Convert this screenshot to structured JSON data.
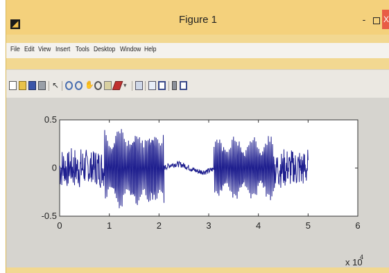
{
  "window": {
    "title": "Figure 1",
    "app_icon": "matlab-icon",
    "controls": {
      "minimize": "-",
      "close": "X"
    }
  },
  "menu": {
    "items": [
      "File",
      "Edit",
      "View",
      "Insert",
      "Tools",
      "Desktop",
      "Window",
      "Help"
    ]
  },
  "toolbar": {
    "icons": [
      "new-figure-icon",
      "open-file-icon",
      "save-icon",
      "print-icon",
      "edit-plot-icon",
      "zoom-in-icon",
      "zoom-out-icon",
      "pan-icon",
      "rotate-3d-icon",
      "data-cursor-icon",
      "brush-icon",
      "link-plot-icon",
      "insert-colorbar-icon",
      "insert-legend-icon",
      "hide-plot-tools-icon",
      "show-plot-tools-icon"
    ]
  },
  "chart_data": {
    "type": "line",
    "title": "",
    "xlabel": "",
    "ylabel": "",
    "xlim": [
      0,
      6
    ],
    "ylim": [
      -0.5,
      0.5
    ],
    "x_multiplier_label": "x 10",
    "x_multiplier_exponent": "4",
    "xticks": [
      "0",
      "1",
      "2",
      "3",
      "4",
      "5",
      "6"
    ],
    "yticks": [
      "0.5",
      "0",
      "-0.5"
    ],
    "series": [
      {
        "color": "#1f1f8f",
        "segments": [
          {
            "x_start": 0,
            "x_end": 0.9,
            "amplitude": 0.22,
            "character": "noisy"
          },
          {
            "x_start": 0.9,
            "x_end": 2.1,
            "amplitude": 0.45,
            "character": "oscillating"
          },
          {
            "x_start": 2.1,
            "x_end": 3.1,
            "amplitude": 0.05,
            "character": "quiet"
          },
          {
            "x_start": 3.1,
            "x_end": 4.3,
            "amplitude": 0.35,
            "character": "oscillating"
          },
          {
            "x_start": 4.3,
            "x_end": 5.0,
            "amplitude": 0.22,
            "character": "noisy"
          }
        ]
      }
    ]
  }
}
